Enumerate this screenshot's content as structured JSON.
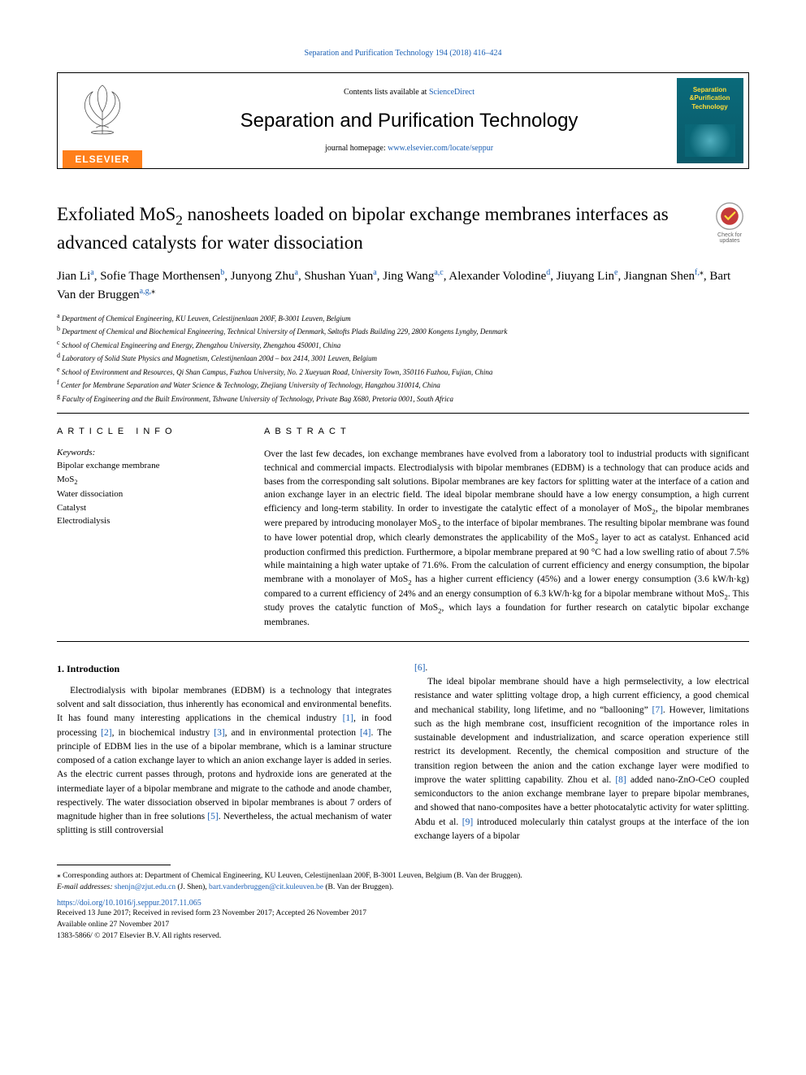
{
  "running_head": "Separation and Purification Technology 194 (2018) 416–424",
  "masthead": {
    "elsevier": "ELSEVIER",
    "contents_prefix": "Contents lists available at ",
    "contents_link": "ScienceDirect",
    "journal": "Separation and Purification Technology",
    "homepage_prefix": "journal homepage: ",
    "homepage_link": "www.elsevier.com/locate/seppur",
    "cover_line1": "Separation",
    "cover_line2": "&Purification",
    "cover_line3": "Technology"
  },
  "check_badge": "Check for updates",
  "title_html": "Exfoliated MoS<sub>2</sub> nanosheets loaded on bipolar exchange membranes interfaces as advanced catalysts for water dissociation",
  "authors_html": "Jian Li<sup>a</sup>, Sofie Thage Morthensen<sup>b</sup>, Junyong Zhu<sup>a</sup>, Shushan Yuan<sup>a</sup>, Jing Wang<sup>a,c</sup>, Alexander Volodine<sup>d</sup>, Jiuyang Lin<sup>e</sup>, Jiangnan Shen<sup>f,</sup><sup class=\"star\">⁎</sup>, Bart Van der Bruggen<sup>a,g,</sup><sup class=\"star\">⁎</sup>",
  "affiliations": [
    "<sup>a</sup> Department of Chemical Engineering, KU Leuven, Celestijnenlaan 200F, B-3001 Leuven, Belgium",
    "<sup>b</sup> Department of Chemical and Biochemical Engineering, Technical University of Denmark, Søltofts Plads Building 229, 2800 Kongens Lyngby, Denmark",
    "<sup>c</sup> School of Chemical Engineering and Energy, Zhengzhou University, Zhengzhou 450001, China",
    "<sup>d</sup> Laboratory of Solid State Physics and Magnetism, Celestijnenlaan 200d – box 2414, 3001 Leuven, Belgium",
    "<sup>e</sup> School of Environment and Resources, Qi Shan Campus, Fuzhou University, No. 2 Xueyuan Road, University Town, 350116 Fuzhou, Fujian, China",
    "<sup>f</sup> Center for Membrane Separation and Water Science & Technology, Zhejiang University of Technology, Hangzhou 310014, China",
    "<sup>g</sup> Faculty of Engineering and the Built Environment, Tshwane University of Technology, Private Bag X680, Pretoria 0001, South Africa"
  ],
  "section_heads": {
    "info": "ARTICLE INFO",
    "abstract": "ABSTRACT"
  },
  "keywords_label": "Keywords:",
  "keywords": [
    "Bipolar exchange membrane",
    "MoS<sub>2</sub>",
    "Water dissociation",
    "Catalyst",
    "Electrodialysis"
  ],
  "abstract_html": "Over the last few decades, ion exchange membranes have evolved from a laboratory tool to industrial products with significant technical and commercial impacts. Electrodialysis with bipolar membranes (EDBM) is a technology that can produce acids and bases from the corresponding salt solutions. Bipolar membranes are key factors for splitting water at the interface of a cation and anion exchange layer in an electric field. The ideal bipolar membrane should have a low energy consumption, a high current efficiency and long-term stability. In order to investigate the catalytic effect of a monolayer of MoS<sub>2</sub>, the bipolar membranes were prepared by introducing monolayer MoS<sub>2</sub> to the interface of bipolar membranes. The resulting bipolar membrane was found to have lower potential drop, which clearly demonstrates the applicability of the MoS<sub>2</sub> layer to act as catalyst. Enhanced acid production confirmed this prediction. Furthermore, a bipolar membrane prepared at 90 °C had a low swelling ratio of about 7.5% while maintaining a high water uptake of 71.6%. From the calculation of current efficiency and energy consumption, the bipolar membrane with a monolayer of MoS<sub>2</sub> has a higher current efficiency (45%) and a lower energy consumption (3.6 kW/h·kg) compared to a current efficiency of 24% and an energy consumption of 6.3 kW/h·kg for a bipolar membrane without MoS<sub>2</sub>. This study proves the catalytic function of MoS<sub>2</sub>, which lays a foundation for further research on catalytic bipolar exchange membranes.",
  "intro_head": "1. Introduction",
  "intro_p1_html": "Electrodialysis with bipolar membranes (EDBM) is a technology that integrates solvent and salt dissociation, thus inherently has economical and environmental benefits. It has found many interesting applications in the chemical industry <span class=\"cite\">[1]</span>, in food processing <span class=\"cite\">[2]</span>, in biochemical industry <span class=\"cite\">[3]</span>, and in environmental protection <span class=\"cite\">[4]</span>. The principle of EDBM lies in the use of a bipolar membrane, which is a laminar structure composed of a cation exchange layer to which an anion exchange layer is added in series. As the electric current passes through, protons and hydroxide ions are generated at the intermediate layer of a bipolar membrane and migrate to the cathode and anode chamber, respectively. The water dissociation observed in bipolar membranes is about 7 orders of magnitude higher than in free solutions <span class=\"cite\">[5]</span>. Nevertheless, the actual mechanism of water splitting is still controversial",
  "intro_p1_tail": "<span class=\"cite\">[6]</span>.",
  "intro_p2_html": "The ideal bipolar membrane should have a high permselectivity, a low electrical resistance and water splitting voltage drop, a high current efficiency, a good chemical and mechanical stability, long lifetime, and no “ballooning” <span class=\"cite\">[7]</span>. However, limitations such as the high membrane cost, insufficient recognition of the importance roles in sustainable development and industrialization, and scarce operation experience still restrict its development. Recently, the chemical composition and structure of the transition region between the anion and the cation exchange layer were modified to improve the water splitting capability. Zhou et al. <span class=\"cite\">[8]</span> added nano-ZnO-CeO coupled semiconductors to the anion exchange membrane layer to prepare bipolar membranes, and showed that nano-composites have a better photocatalytic activity for water splitting. Abdu et al. <span class=\"cite\">[9]</span> introduced molecularly thin catalyst groups at the interface of the ion exchange layers of a bipolar",
  "footnotes": {
    "corr": "⁎ Corresponding authors at: Department of Chemical Engineering, KU Leuven, Celestijnenlaan 200F, B-3001 Leuven, Belgium (B. Van der Bruggen).",
    "emails_label": "E-mail addresses: ",
    "email1": "shenjn@zjut.edu.cn",
    "email1_who": " (J. Shen), ",
    "email2": "bart.vanderbruggen@cit.kuleuven.be",
    "email2_who": " (B. Van der Bruggen)."
  },
  "doi": "https://doi.org/10.1016/j.seppur.2017.11.065",
  "history": {
    "received": "Received 13 June 2017; Received in revised form 23 November 2017; Accepted 26 November 2017",
    "online": "Available online 27 November 2017",
    "issn": "1383-5866/ © 2017 Elsevier B.V. All rights reserved."
  },
  "colors": {
    "link": "#1a5fb4",
    "elsevier_bg": "#ff7f1a",
    "cover_grad_top": "#0a6a7a",
    "cover_grad_bottom": "#0a5a6a",
    "cover_text": "#ffde3a"
  }
}
